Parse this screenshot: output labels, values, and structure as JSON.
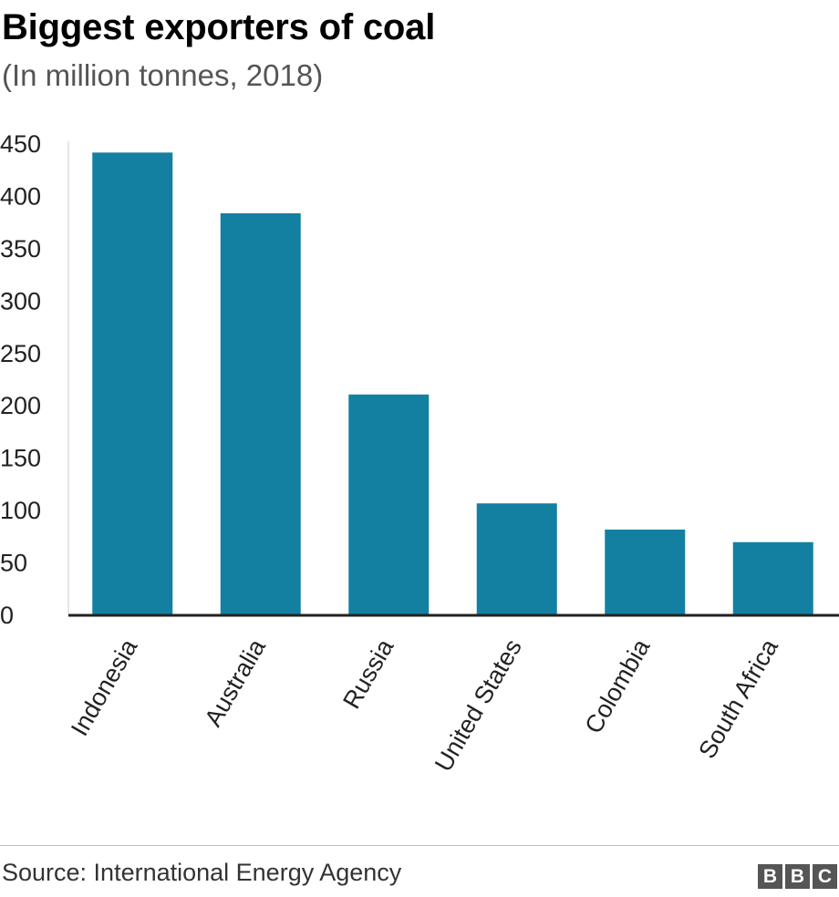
{
  "chart_data": {
    "type": "bar",
    "title": "Biggest exporters of coal",
    "subtitle": "(In million tonnes, 2018)",
    "categories": [
      "Indonesia",
      "Australia",
      "Russia",
      "United States",
      "Colombia",
      "South Africa"
    ],
    "values": [
      441,
      383,
      210,
      106,
      81,
      69
    ],
    "ylim": [
      0,
      450
    ],
    "yticks": [
      0,
      50,
      100,
      150,
      200,
      250,
      300,
      350,
      400,
      450
    ],
    "bar_color": "#1380a1",
    "grid": false
  },
  "footer": {
    "source": "Source: International Energy Agency",
    "logo_letters": [
      "B",
      "B",
      "C"
    ]
  }
}
